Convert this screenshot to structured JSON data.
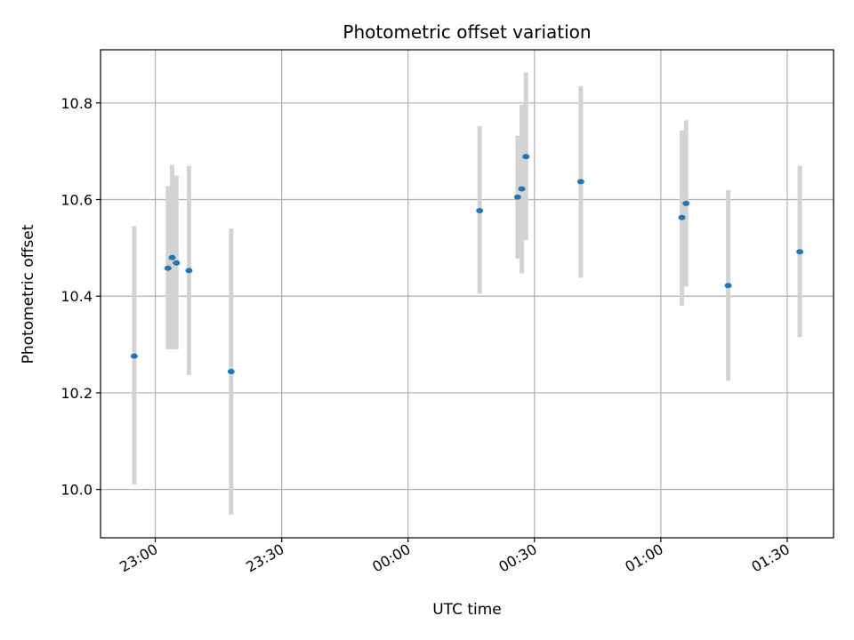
{
  "chart_data": {
    "type": "scatter",
    "title": "Photometric offset variation",
    "xlabel": "UTC time",
    "ylabel": "Photometric offset",
    "grid": true,
    "x_unit": "UTC time (HH:MM)",
    "x_ticks": [
      "23:00",
      "23:30",
      "00:00",
      "00:30",
      "01:00",
      "01:30"
    ],
    "y_ticks": [
      "10.0",
      "10.2",
      "10.4",
      "10.6",
      "10.8"
    ],
    "xlim": [
      "22:47",
      "01:41"
    ],
    "ylim": [
      9.9,
      10.91
    ],
    "colors": {
      "point": "#1f77b4",
      "errorbar": "#d3d3d3",
      "grid": "#b0b0b0",
      "axes": "#000000"
    },
    "series": [
      {
        "points": [
          {
            "x": "22:55",
            "y": 10.276,
            "ylow": 10.01,
            "yhigh": 10.545
          },
          {
            "x": "23:03",
            "y": 10.458,
            "ylow": 10.29,
            "yhigh": 10.628
          },
          {
            "x": "23:04",
            "y": 10.48,
            "ylow": 10.29,
            "yhigh": 10.672
          },
          {
            "x": "23:05",
            "y": 10.469,
            "ylow": 10.29,
            "yhigh": 10.65
          },
          {
            "x": "23:08",
            "y": 10.453,
            "ylow": 10.237,
            "yhigh": 10.67
          },
          {
            "x": "23:18",
            "y": 10.244,
            "ylow": 9.948,
            "yhigh": 10.54
          },
          {
            "x": "00:17",
            "y": 10.577,
            "ylow": 10.405,
            "yhigh": 10.752
          },
          {
            "x": "00:26",
            "y": 10.605,
            "ylow": 10.478,
            "yhigh": 10.732
          },
          {
            "x": "00:27",
            "y": 10.622,
            "ylow": 10.447,
            "yhigh": 10.797
          },
          {
            "x": "00:28",
            "y": 10.689,
            "ylow": 10.516,
            "yhigh": 10.863
          },
          {
            "x": "00:41",
            "y": 10.637,
            "ylow": 10.438,
            "yhigh": 10.835
          },
          {
            "x": "01:05",
            "y": 10.563,
            "ylow": 10.38,
            "yhigh": 10.743
          },
          {
            "x": "01:06",
            "y": 10.592,
            "ylow": 10.42,
            "yhigh": 10.764
          },
          {
            "x": "01:16",
            "y": 10.422,
            "ylow": 10.225,
            "yhigh": 10.62
          },
          {
            "x": "01:33",
            "y": 10.492,
            "ylow": 10.315,
            "yhigh": 10.67
          }
        ]
      }
    ]
  }
}
